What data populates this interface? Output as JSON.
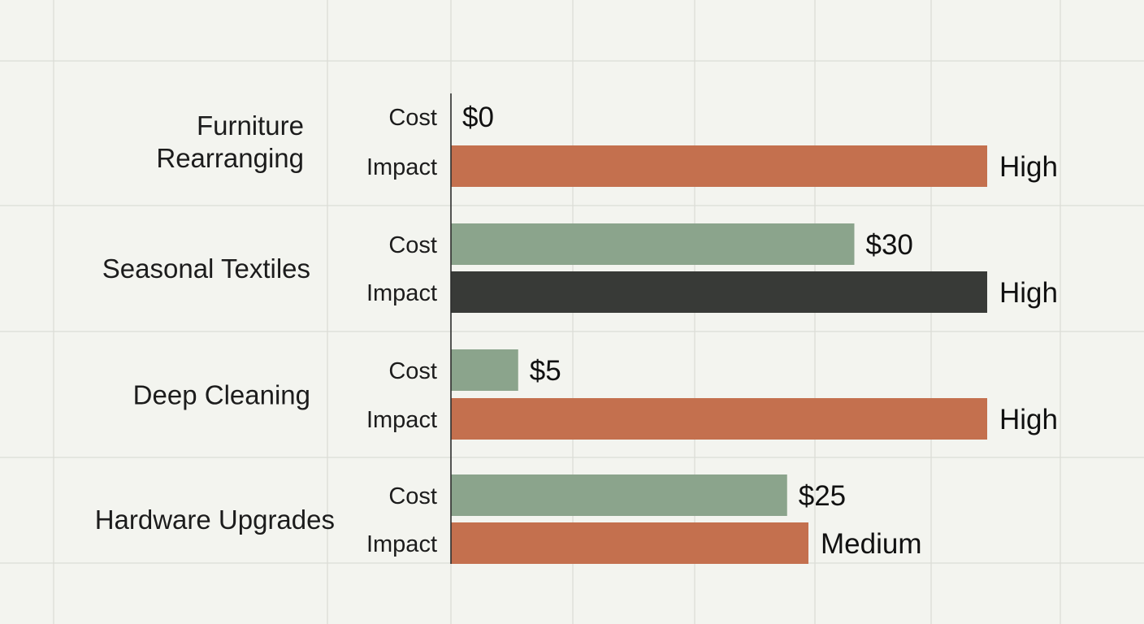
{
  "chart_data": {
    "type": "bar",
    "orientation": "horizontal",
    "grid": true,
    "row_labels": {
      "cost": "Cost",
      "impact": "Impact"
    },
    "impact_scale": {
      "High": 3,
      "Medium": 2,
      "Low": 1
    },
    "cost_axis_max": 40,
    "colors": {
      "background": "#f3f4ef",
      "grid": "#dcddd6",
      "axis": "#2d2d2d",
      "cost_bar": "#8ba48c",
      "impact_bar": "#c4704e",
      "impact_bar_highlight": "#383a37",
      "text": "#1c1c1c"
    },
    "categories": [
      {
        "name": [
          "Furniture",
          "Rearranging"
        ],
        "cost": 0,
        "cost_label": "$0",
        "impact": "High",
        "highlight": false
      },
      {
        "name": [
          "Seasonal Textiles"
        ],
        "cost": 30,
        "cost_label": "$30",
        "impact": "High",
        "highlight": true
      },
      {
        "name": [
          "Deep Cleaning"
        ],
        "cost": 5,
        "cost_label": "$5",
        "impact": "High",
        "highlight": false
      },
      {
        "name": [
          "Hardware Upgrades"
        ],
        "cost": 25,
        "cost_label": "$25",
        "impact": "Medium",
        "highlight": false
      }
    ]
  }
}
